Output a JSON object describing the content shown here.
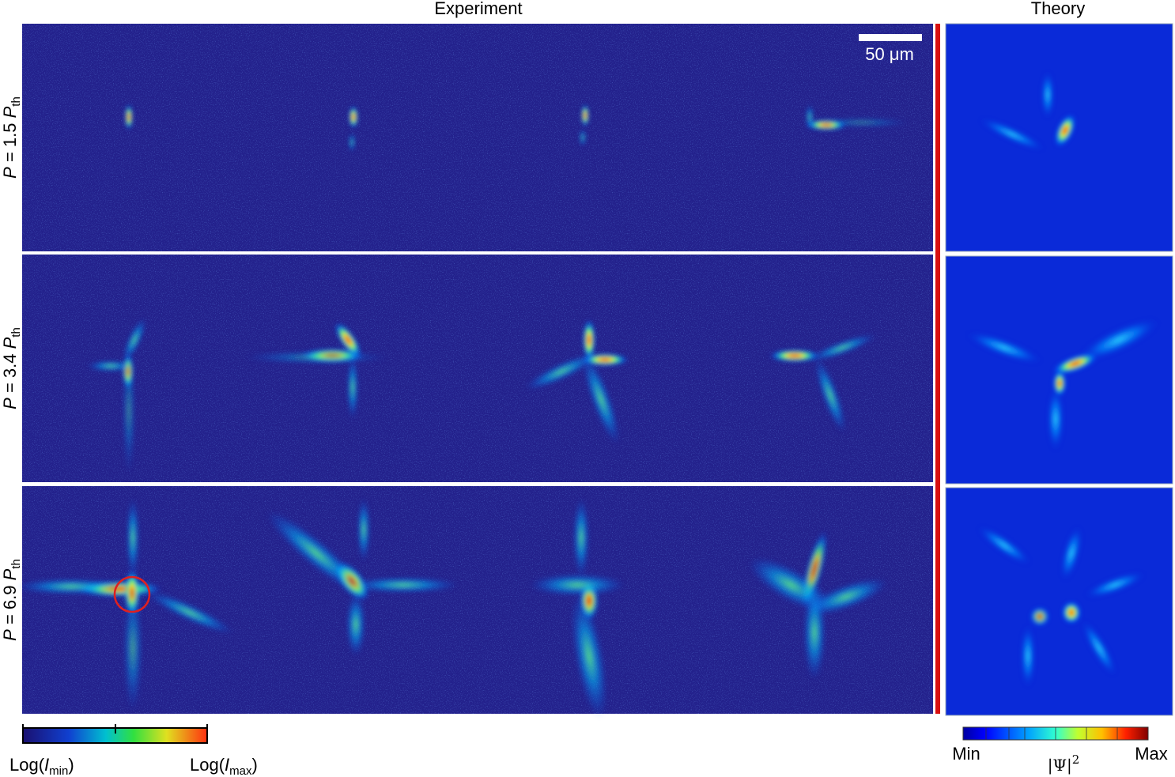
{
  "header": {
    "experiment": "Experiment",
    "theory": "Theory"
  },
  "scale_bar": "50 μm",
  "rows": [
    {
      "label": [
        "P",
        " = 1.5 ",
        "P",
        "th"
      ]
    },
    {
      "label": [
        "P",
        " = 3.4 ",
        "P",
        "th"
      ]
    },
    {
      "label": [
        "P",
        " = 6.9 ",
        "P",
        "th"
      ]
    }
  ],
  "experiment_colorbar": {
    "min_label": [
      "Log(",
      "I",
      "min",
      ")"
    ],
    "max_label": [
      "Log(",
      "I",
      "max",
      ")"
    ]
  },
  "theory_colorbar": {
    "min": "Min",
    "max": "Max",
    "quantity": [
      "|Ψ|",
      "2"
    ]
  }
}
